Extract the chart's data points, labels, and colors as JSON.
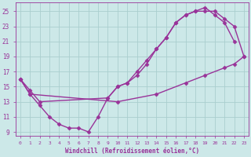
{
  "background_color": "#cce8e8",
  "grid_color": "#aacece",
  "line_color": "#993399",
  "line_width": 1.0,
  "marker": "D",
  "marker_size": 2.5,
  "xlim": [
    -0.5,
    23.5
  ],
  "ylim": [
    8.5,
    26.2
  ],
  "xtick_start": 0,
  "xtick_end": 23,
  "yticks": [
    9,
    11,
    13,
    15,
    17,
    19,
    21,
    23,
    25
  ],
  "xlabel": "Windchill (Refroidissement éolien,°C)",
  "lines": [
    {
      "x": [
        0,
        1,
        10,
        14,
        17,
        19,
        21,
        22,
        23
      ],
      "y": [
        16,
        14,
        13.0,
        14.0,
        15.5,
        16.5,
        17.5,
        18.0,
        19.0
      ]
    },
    {
      "x": [
        0,
        1,
        2,
        3,
        4,
        5,
        6,
        7,
        8,
        9,
        10,
        11,
        12,
        13,
        14,
        15,
        16,
        17,
        18,
        19,
        20,
        21,
        22,
        23
      ],
      "y": [
        16,
        14,
        12.5,
        11,
        10,
        9.5,
        9.5,
        9,
        11,
        13.5,
        15,
        15.5,
        16.5,
        18,
        20,
        21.5,
        23.5,
        24.5,
        25,
        25,
        25,
        24,
        23,
        19
      ]
    },
    {
      "x": [
        0,
        1,
        2,
        9,
        10,
        11,
        12,
        13,
        14,
        15,
        16,
        17,
        18,
        19,
        20,
        21,
        22
      ],
      "y": [
        16,
        14.5,
        13,
        13.5,
        15,
        15.5,
        17,
        18.5,
        20,
        21.5,
        23.5,
        24.5,
        25,
        25.5,
        24.5,
        23.5,
        21
      ]
    }
  ]
}
